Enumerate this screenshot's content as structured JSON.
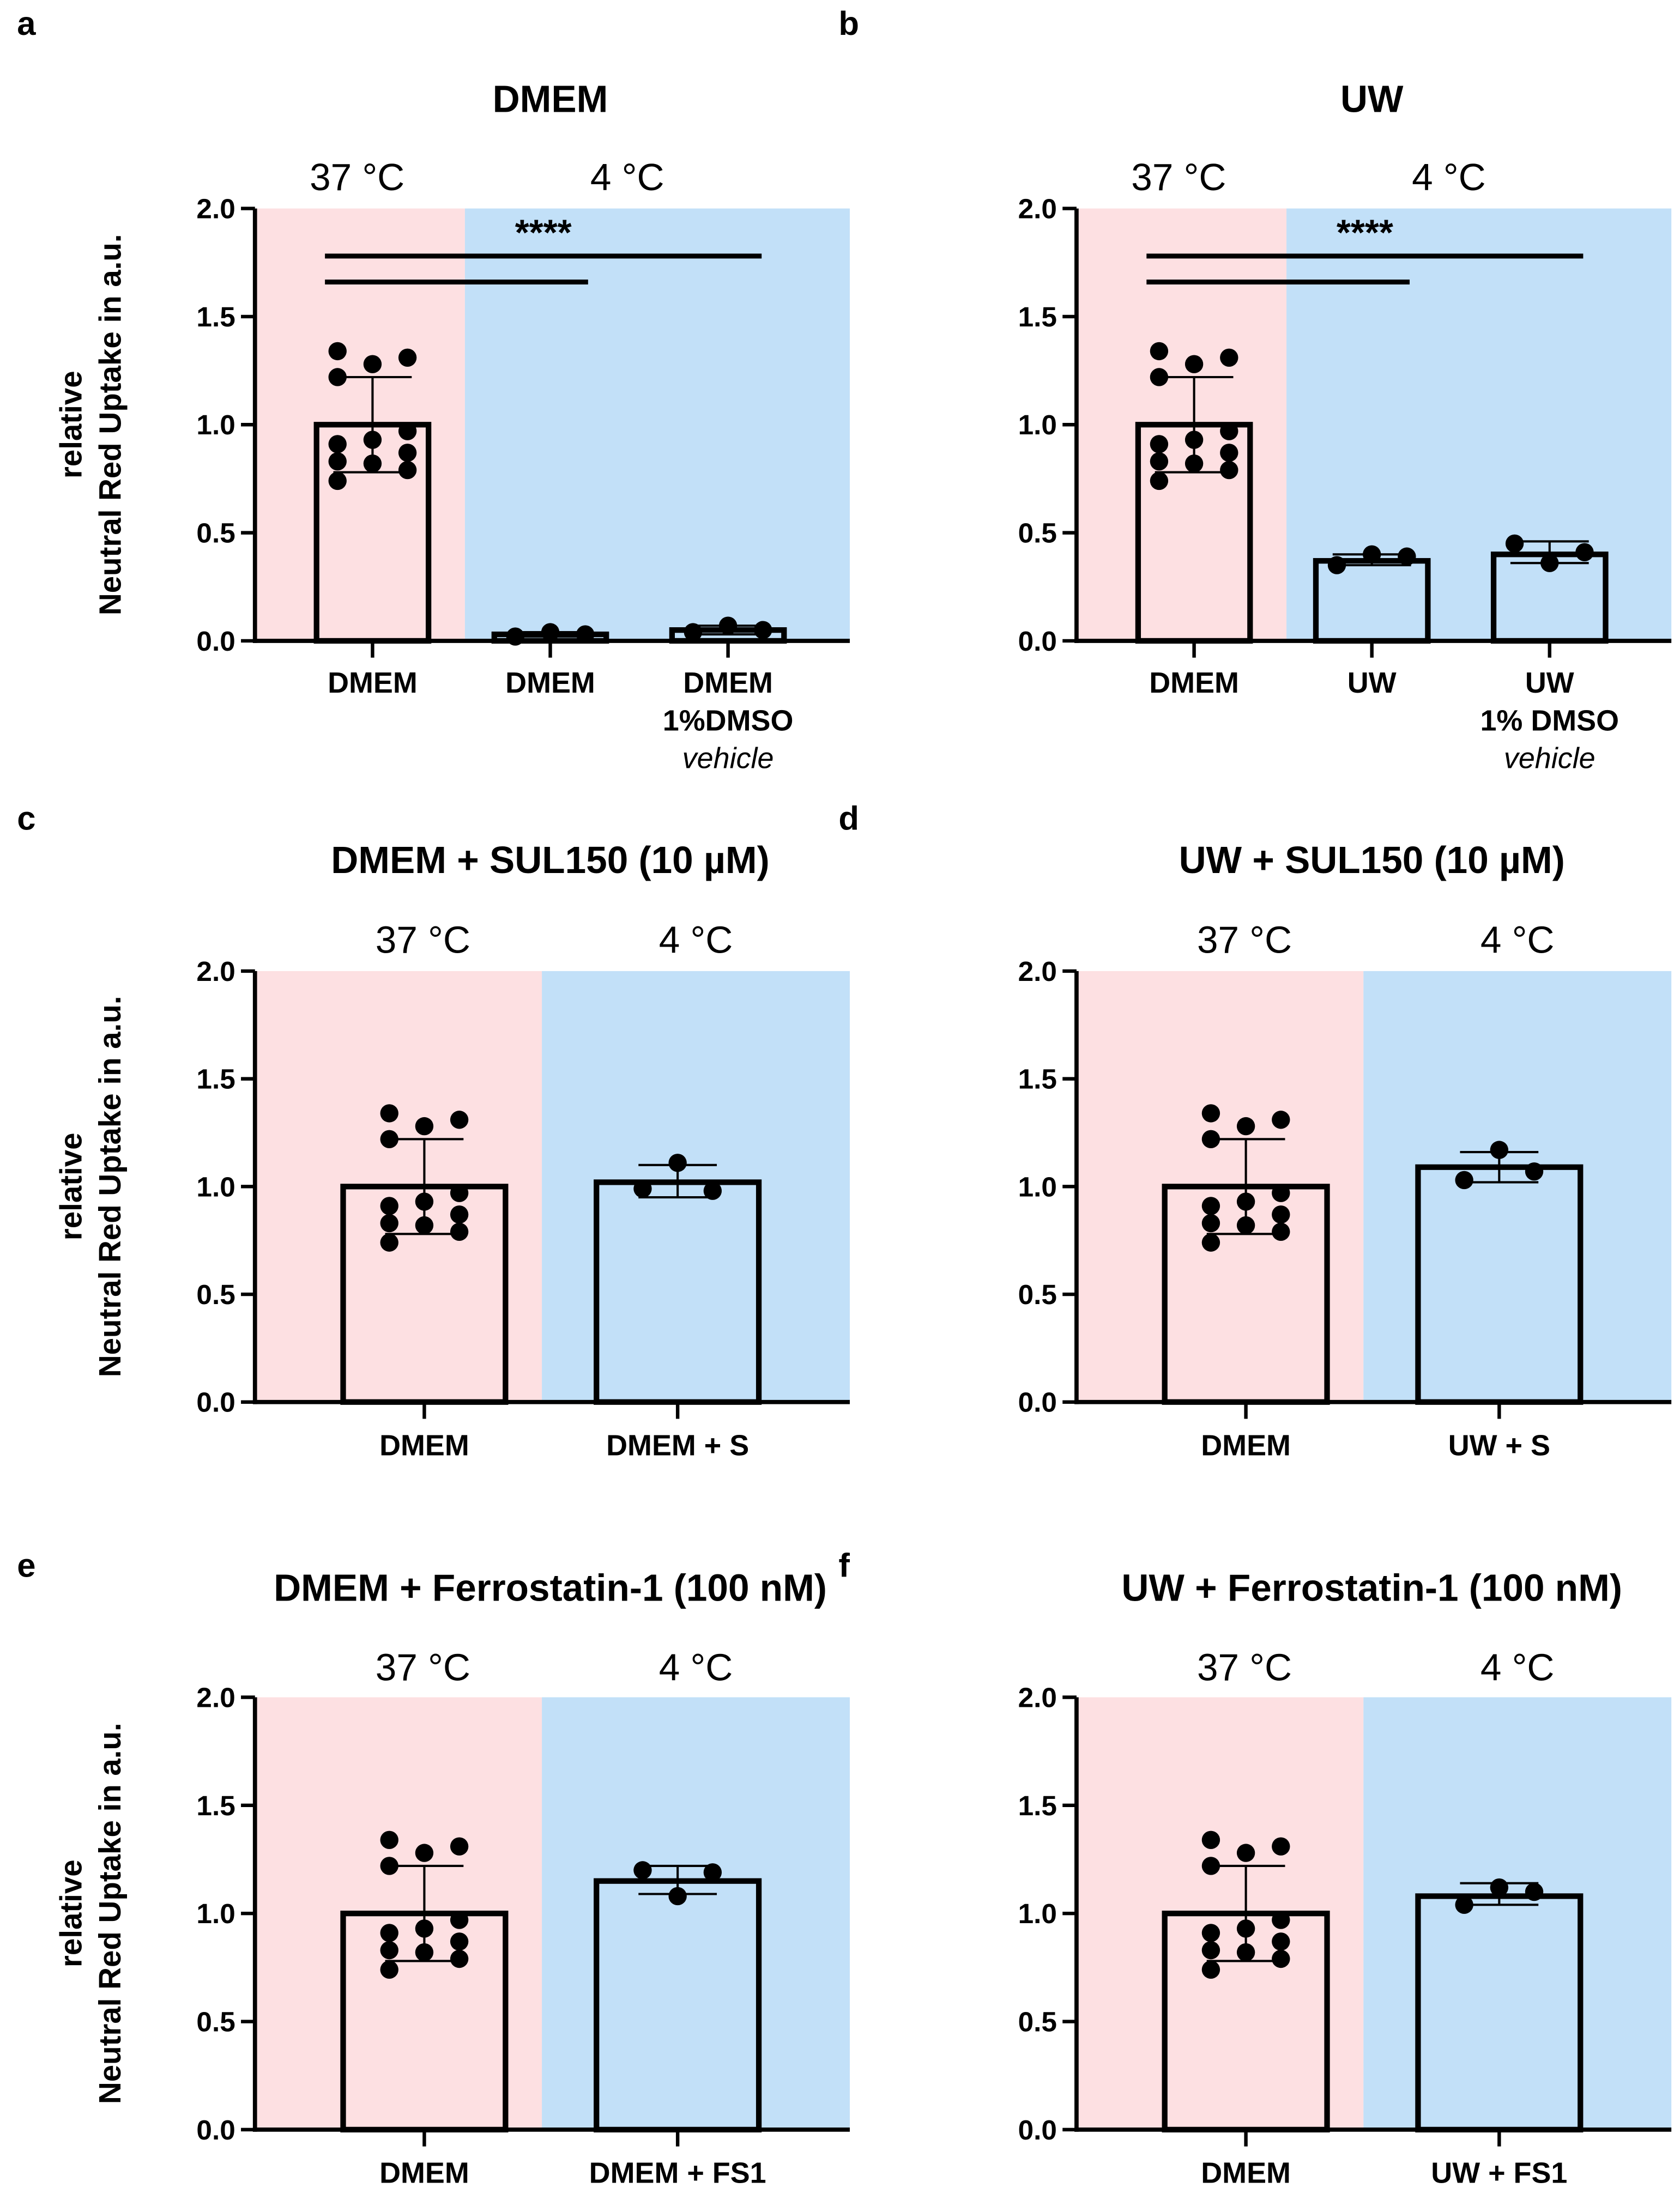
{
  "colors": {
    "warm": "#fde0e2",
    "cold": "#c2e0f8",
    "ink": "#000000",
    "bar_fill_warm": "#fde0e2",
    "bar_fill_cold": "#c2e0f8"
  },
  "chart_data": [
    {
      "panel_label": "a",
      "type": "bar",
      "title": "DMEM",
      "regions": [
        "37 °C",
        "4 °C"
      ],
      "ylabel_line1": "relative",
      "ylabel_line2": "Neutral Red Uptake in a.u.",
      "ylim": [
        0,
        2.0
      ],
      "yticks": [
        "0.0",
        "0.5",
        "1.0",
        "1.5",
        "2.0"
      ],
      "categories": [
        {
          "lines": [
            "DMEM"
          ],
          "italic_line": "",
          "region": 0,
          "mean": 1.0,
          "err": [
            0.78,
            1.22
          ],
          "points": [
            1.34,
            1.22,
            0.91,
            0.83,
            0.74,
            1.28,
            0.93,
            0.82,
            1.31,
            0.97,
            0.87,
            0.79
          ]
        },
        {
          "lines": [
            "DMEM"
          ],
          "italic_line": "",
          "region": 1,
          "mean": 0.03,
          "err": [
            0.02,
            0.04
          ],
          "points": [
            0.02,
            0.04,
            0.03
          ]
        },
        {
          "lines": [
            "DMEM",
            "1%DMSO"
          ],
          "italic_line": "vehicle",
          "region": 1,
          "mean": 0.05,
          "err": [
            0.03,
            0.07
          ],
          "points": [
            0.04,
            0.07,
            0.05
          ]
        }
      ],
      "significance": {
        "label": "****",
        "comparisons": [
          {
            "from": 0,
            "to": 2,
            "y": 1.78
          },
          {
            "from": 0,
            "to": 1,
            "y": 1.66
          }
        ]
      }
    },
    {
      "panel_label": "b",
      "type": "bar",
      "title": "UW",
      "regions": [
        "37 °C",
        "4 °C"
      ],
      "ylim": [
        0,
        2.0
      ],
      "yticks": [
        "0.0",
        "0.5",
        "1.0",
        "1.5",
        "2.0"
      ],
      "categories": [
        {
          "lines": [
            "DMEM"
          ],
          "italic_line": "",
          "region": 0,
          "mean": 1.0,
          "err": [
            0.78,
            1.22
          ],
          "points": [
            1.34,
            1.22,
            0.91,
            0.83,
            0.74,
            1.28,
            0.93,
            0.82,
            1.31,
            0.97,
            0.87,
            0.79
          ]
        },
        {
          "lines": [
            "UW"
          ],
          "italic_line": "",
          "region": 1,
          "mean": 0.37,
          "err": [
            0.35,
            0.4
          ],
          "points": [
            0.35,
            0.4,
            0.39
          ]
        },
        {
          "lines": [
            "UW",
            "1% DMSO"
          ],
          "italic_line": "vehicle",
          "region": 1,
          "mean": 0.4,
          "err": [
            0.36,
            0.46
          ],
          "points": [
            0.45,
            0.36,
            0.41
          ]
        }
      ],
      "significance": {
        "label": "****",
        "comparisons": [
          {
            "from": 0,
            "to": 2,
            "y": 1.78
          },
          {
            "from": 0,
            "to": 1,
            "y": 1.66
          }
        ]
      }
    },
    {
      "panel_label": "c",
      "type": "bar",
      "title": "DMEM + SUL150  (10 µM)",
      "regions": [
        "37 °C",
        "4 °C"
      ],
      "ylabel_line1": "relative",
      "ylabel_line2": "Neutral Red Uptake in a.u.",
      "ylim": [
        0,
        2.0
      ],
      "yticks": [
        "0.0",
        "0.5",
        "1.0",
        "1.5",
        "2.0"
      ],
      "categories": [
        {
          "lines": [
            "DMEM"
          ],
          "italic_line": "",
          "region": 0,
          "mean": 1.0,
          "err": [
            0.78,
            1.22
          ],
          "points": [
            1.34,
            1.22,
            0.91,
            0.83,
            0.74,
            1.28,
            0.93,
            0.82,
            1.31,
            0.97,
            0.87,
            0.79
          ]
        },
        {
          "lines": [
            "DMEM + S"
          ],
          "italic_line": "",
          "region": 1,
          "mean": 1.02,
          "err": [
            0.95,
            1.1
          ],
          "points": [
            0.99,
            1.11,
            0.98
          ]
        }
      ]
    },
    {
      "panel_label": "d",
      "type": "bar",
      "title": "UW + SUL150 (10 µM)",
      "regions": [
        "37 °C",
        "4 °C"
      ],
      "ylim": [
        0,
        2.0
      ],
      "yticks": [
        "0.0",
        "0.5",
        "1.0",
        "1.5",
        "2.0"
      ],
      "categories": [
        {
          "lines": [
            "DMEM"
          ],
          "italic_line": "",
          "region": 0,
          "mean": 1.0,
          "err": [
            0.78,
            1.22
          ],
          "points": [
            1.34,
            1.22,
            0.91,
            0.83,
            0.74,
            1.28,
            0.93,
            0.82,
            1.31,
            0.97,
            0.87,
            0.79
          ]
        },
        {
          "lines": [
            "UW + S"
          ],
          "italic_line": "",
          "region": 1,
          "mean": 1.09,
          "err": [
            1.02,
            1.16
          ],
          "points": [
            1.03,
            1.17,
            1.07
          ]
        }
      ]
    },
    {
      "panel_label": "e",
      "type": "bar",
      "title": "DMEM + Ferrostatin-1 (100 nM)",
      "regions": [
        "37 °C",
        "4 °C"
      ],
      "ylabel_line1": "relative",
      "ylabel_line2": "Neutral Red Uptake in a.u.",
      "ylim": [
        0,
        2.0
      ],
      "yticks": [
        "0.0",
        "0.5",
        "1.0",
        "1.5",
        "2.0"
      ],
      "categories": [
        {
          "lines": [
            "DMEM"
          ],
          "italic_line": "",
          "region": 0,
          "mean": 1.0,
          "err": [
            0.78,
            1.22
          ],
          "points": [
            1.34,
            1.22,
            0.91,
            0.83,
            0.74,
            1.28,
            0.93,
            0.82,
            1.31,
            0.97,
            0.87,
            0.79
          ]
        },
        {
          "lines": [
            "DMEM + FS1"
          ],
          "italic_line": "",
          "region": 1,
          "mean": 1.15,
          "err": [
            1.09,
            1.22
          ],
          "points": [
            1.2,
            1.08,
            1.19
          ]
        }
      ]
    },
    {
      "panel_label": "f",
      "type": "bar",
      "title": "UW + Ferrostatin-1 (100 nM)",
      "regions": [
        "37 °C",
        "4 °C"
      ],
      "ylim": [
        0,
        2.0
      ],
      "yticks": [
        "0.0",
        "0.5",
        "1.0",
        "1.5",
        "2.0"
      ],
      "categories": [
        {
          "lines": [
            "DMEM"
          ],
          "italic_line": "",
          "region": 0,
          "mean": 1.0,
          "err": [
            0.78,
            1.22
          ],
          "points": [
            1.34,
            1.22,
            0.91,
            0.83,
            0.74,
            1.28,
            0.93,
            0.82,
            1.31,
            0.97,
            0.87,
            0.79
          ]
        },
        {
          "lines": [
            "UW + FS1"
          ],
          "italic_line": "",
          "region": 1,
          "mean": 1.08,
          "err": [
            1.04,
            1.14
          ],
          "points": [
            1.04,
            1.12,
            1.1
          ]
        }
      ]
    }
  ]
}
